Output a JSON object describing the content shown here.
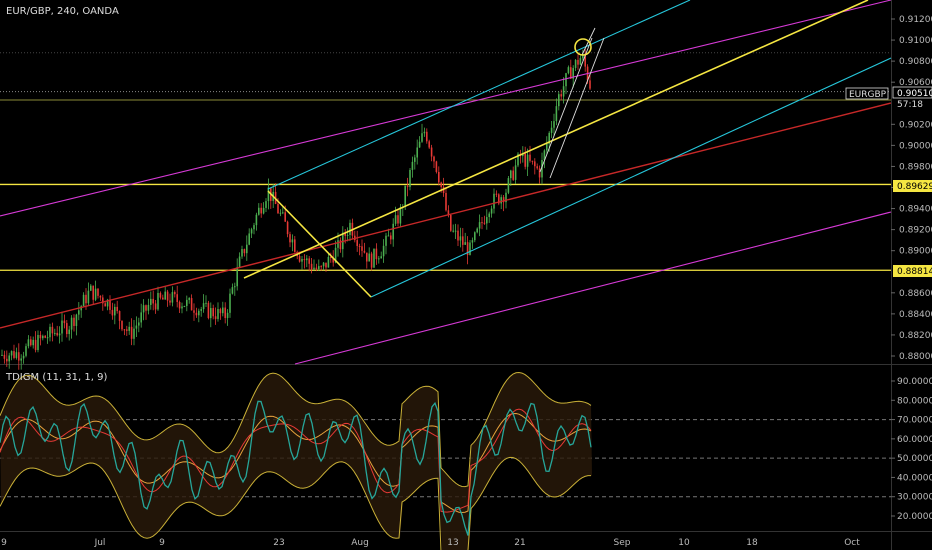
{
  "header": {
    "symbol_info": "EUR/GBP, 240, OANDA",
    "indicator_title": "TDIGM (11, 31, 1, 9)"
  },
  "colors": {
    "bg": "#000000",
    "grid_dotted": "#444444",
    "bull": "#4caf50",
    "bear": "#e53935",
    "trend_red": "#c62828",
    "cyan": "#26c6da",
    "magenta": "#d63ad6",
    "yellow": "#f5e642",
    "white": "#e0e0e0",
    "tdi_band": "#c9b037",
    "tdi_fast": "#26a69a",
    "tdi_slow": "#e53935"
  },
  "price_axis": {
    "ticks": [
      "0.91200",
      "0.91000",
      "0.90800",
      "0.90600",
      "0.90200",
      "0.90000",
      "0.89800",
      "0.89600",
      "0.89400",
      "0.89200",
      "0.89000",
      "0.88600",
      "0.88400",
      "0.88200",
      "0.88000"
    ],
    "current_label": "0.90510",
    "symbol_tag": "EURGBP",
    "countdown": "57:18",
    "level_high": "0.89629",
    "level_low": "0.88814"
  },
  "indicator_axis": {
    "ticks": [
      "90.0000",
      "80.0000",
      "70.0000",
      "60.0000",
      "50.0000",
      "40.0000",
      "30.0000",
      "20.0000"
    ]
  },
  "time_axis": {
    "labels": [
      "9",
      "Jul",
      "9",
      "23",
      "Aug",
      "13",
      "21",
      "Sep",
      "10",
      "18",
      "Oct"
    ]
  },
  "chart_data": {
    "type": "candlestick",
    "symbol": "EUR/GBP",
    "timeframe": "240",
    "source": "OANDA",
    "ylim": [
      0.878,
      0.913
    ],
    "horizontal_levels": [
      0.89629,
      0.88814,
      0.9051,
      0.9088
    ],
    "indicator": {
      "name": "TDIGM (11, 31, 1, 9)",
      "ylim": [
        15,
        95
      ],
      "dashed_levels": [
        70,
        50,
        30
      ]
    }
  }
}
